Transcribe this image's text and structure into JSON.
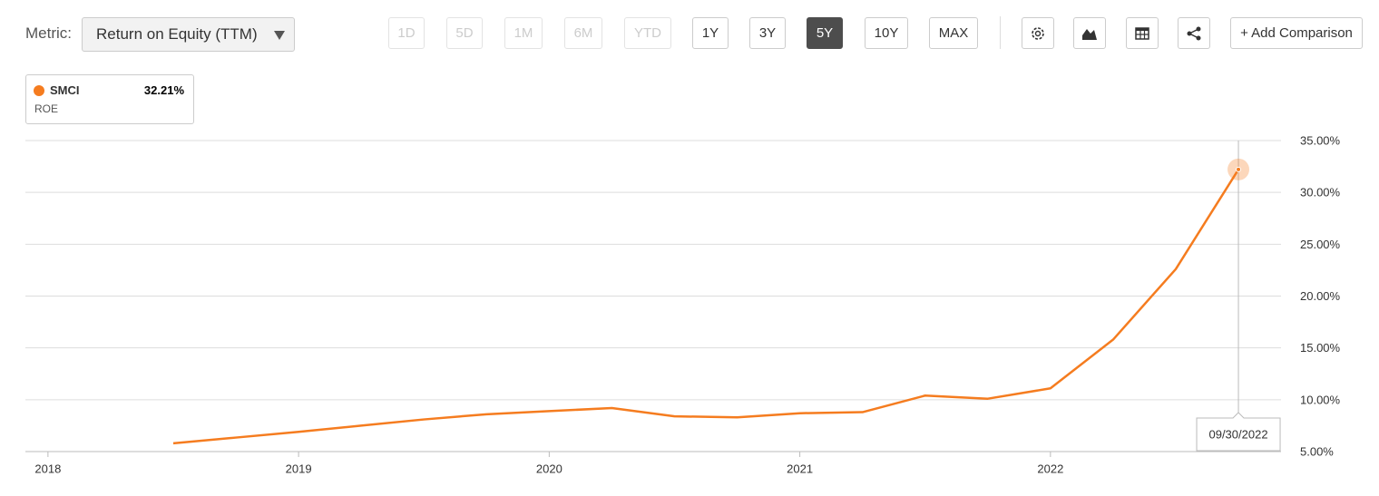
{
  "toolbar": {
    "metric_label": "Metric:",
    "metric": "Return on Equity (TTM)",
    "ranges": [
      "1D",
      "5D",
      "1M",
      "6M",
      "YTD",
      "1Y",
      "3Y",
      "5Y",
      "10Y",
      "MAX"
    ],
    "disabled_ranges": [
      0,
      1,
      2,
      3,
      4
    ],
    "active_range": 7,
    "add_comparison": "+ Add Comparison"
  },
  "chart_data": {
    "type": "line",
    "x": [
      2018.5,
      2018.75,
      2019.0,
      2019.25,
      2019.5,
      2019.75,
      2020.0,
      2020.25,
      2020.5,
      2020.75,
      2021.0,
      2021.25,
      2021.5,
      2021.75,
      2022.0,
      2022.25,
      2022.5,
      2022.75
    ],
    "series": [
      {
        "name": "SMCI",
        "color": "#f57c1f",
        "values": [
          5.8,
          6.35,
          6.9,
          7.5,
          8.1,
          8.6,
          8.9,
          9.2,
          8.4,
          8.3,
          8.7,
          8.8,
          10.4,
          10.1,
          11.1,
          15.8,
          22.6,
          32.21
        ]
      }
    ],
    "legend": {
      "value_label": "32.21%",
      "metric": "ROE"
    },
    "tooltip_date": "09/30/2022",
    "xlim": [
      2017.91,
      2022.92
    ],
    "xticks": [
      2018,
      2019,
      2020,
      2021,
      2022
    ],
    "ylim": [
      5,
      35
    ],
    "yticks": [
      {
        "value": 5,
        "label": "5.00%"
      },
      {
        "value": 10,
        "label": "10.00%"
      },
      {
        "value": 15,
        "label": "15.00%"
      },
      {
        "value": 20,
        "label": "20.00%"
      },
      {
        "value": 25,
        "label": "25.00%"
      },
      {
        "value": 30,
        "label": "30.00%"
      },
      {
        "value": 35,
        "label": "35.00%"
      }
    ],
    "grid": true
  }
}
